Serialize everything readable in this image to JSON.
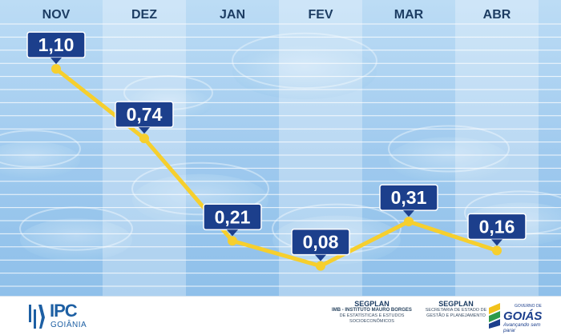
{
  "chart_data": {
    "type": "line",
    "title": "",
    "xlabel": "",
    "ylabel": "",
    "categories": [
      "NOV",
      "DEZ",
      "JAN",
      "FEV",
      "MAR",
      "ABR"
    ],
    "series": [
      {
        "values": [
          1.1,
          0.74,
          0.21,
          0.08,
          0.31,
          0.16
        ]
      }
    ],
    "value_labels": [
      "1,10",
      "0,74",
      "0,21",
      "0,08",
      "0,31",
      "0,16"
    ],
    "ylim": [
      0,
      1.2
    ],
    "grid": true,
    "colors": {
      "line": "#f6cf2e",
      "label_bg": "#1c3f8c",
      "label_text": "#ffffff",
      "month_text": "#1d3d63",
      "background": "#a9cff0"
    }
  },
  "footer": {
    "ipc_logo": {
      "title": "IPC",
      "subtitle": "GOIÂNIA"
    },
    "segplan_imb": {
      "title": "SEGPLAN",
      "line1": "IMB - INSTITUTO MAURO BORGES",
      "line2": "DE ESTATÍSTICAS E ESTUDOS SOCIOECONÔMICOS"
    },
    "segplan": {
      "title": "SEGPLAN",
      "line1": "SECRETARIA DE ESTADO DE",
      "line2": "GESTÃO E PLANEJAMENTO"
    },
    "goias_logo": {
      "prefix": "GOVERNO DE",
      "name": "GOIÁS",
      "tagline": "Avançando sem parar"
    }
  }
}
